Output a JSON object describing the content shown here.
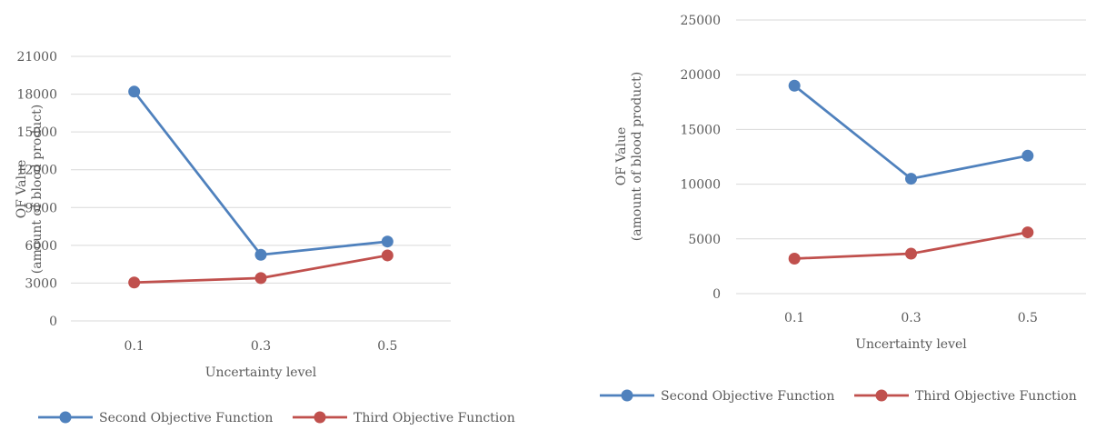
{
  "chart_data": [
    {
      "type": "line",
      "categories": [
        "0.1",
        "0.3",
        "0.5"
      ],
      "series": [
        {
          "name": "Second Objective Function",
          "values": [
            18200,
            5250,
            6300
          ],
          "color": "#4f81bd"
        },
        {
          "name": "Third Objective Function",
          "values": [
            3050,
            3400,
            5200
          ],
          "color": "#c0504d"
        }
      ],
      "xlabel": "Uncertainty level",
      "ylabel": [
        "OF Value",
        "(amount of blood product)"
      ],
      "ylim": [
        0,
        21000
      ],
      "yticks": [
        "0",
        "3000",
        "6000",
        "9000",
        "12000",
        "15000",
        "18000",
        "21000"
      ],
      "grid": true,
      "legend": "bottom"
    },
    {
      "type": "line",
      "categories": [
        "0.1",
        "0.3",
        "0.5"
      ],
      "series": [
        {
          "name": "Second Objective Function",
          "values": [
            19000,
            10500,
            12600
          ],
          "color": "#4f81bd"
        },
        {
          "name": "Third Objective Function",
          "values": [
            3200,
            3650,
            5600
          ],
          "color": "#c0504d"
        }
      ],
      "xlabel": "Uncertainty level",
      "ylabel": [
        "OF Value",
        "(amount of blood product)"
      ],
      "ylim": [
        0,
        25000
      ],
      "yticks": [
        "0",
        "5000",
        "10000",
        "15000",
        "20000",
        "25000"
      ],
      "grid": true,
      "legend": "bottom"
    }
  ]
}
